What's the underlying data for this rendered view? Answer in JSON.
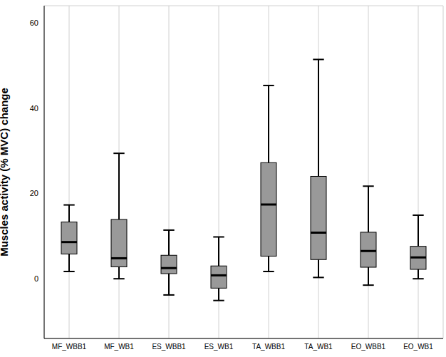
{
  "chart_data": {
    "type": "box",
    "y_label": "Muscles activity (% MVC) change",
    "categories": [
      "MF_WBB1",
      "MF_WB1",
      "ES_WBB1",
      "ES_WB1",
      "TA_WBB1",
      "TA_WB1",
      "EO_WBB1",
      "EO_WB1"
    ],
    "min": [
      1.7,
      0,
      -3.8,
      -5.1,
      1.7,
      0.3,
      -1.5,
      0
    ],
    "q1": [
      5.8,
      2.8,
      1.2,
      -2.2,
      5.3,
      4.5,
      2.7,
      2.2
    ],
    "median": [
      8.6,
      4.8,
      2.5,
      0.8,
      17.4,
      10.8,
      6.5,
      5.0
    ],
    "q3": [
      13.3,
      13.9,
      5.5,
      3.0,
      27.2,
      24.0,
      10.9,
      7.6
    ],
    "max": [
      17.3,
      29.4,
      11.4,
      9.8,
      45.3,
      51.4,
      21.7,
      14.9
    ],
    "color": "#999999",
    "ylim": [
      -14,
      64
    ],
    "yticks": [
      0,
      20,
      40,
      60
    ],
    "grid": true
  }
}
